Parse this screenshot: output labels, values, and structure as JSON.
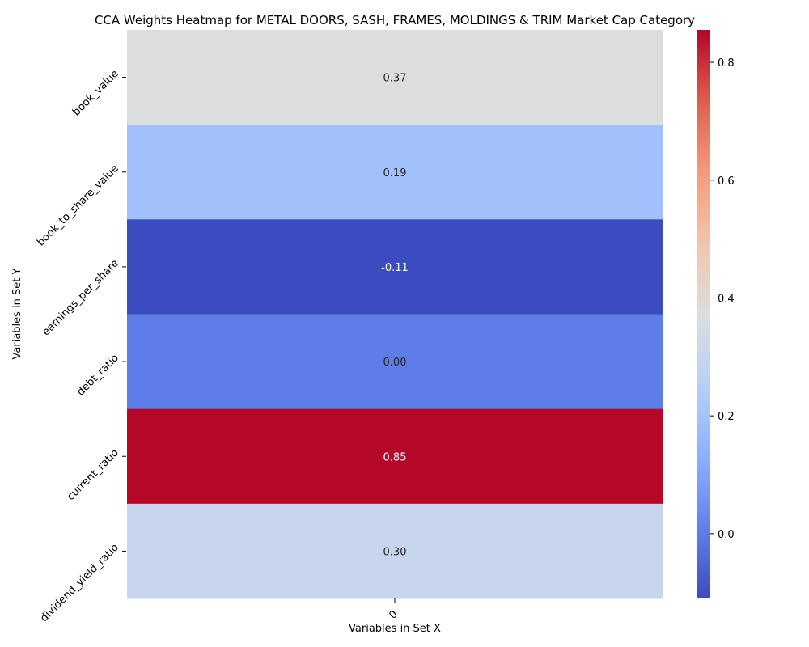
{
  "chart_data": {
    "type": "heatmap",
    "title": "CCA Weights Heatmap for METAL DOORS, SASH, FRAMES, MOLDINGS & TRIM Market Cap Category",
    "xlabel": "Variables in Set X",
    "ylabel": "Variables in Set Y",
    "x_categories": [
      "0"
    ],
    "y_categories": [
      "book_value",
      "book_to_share_value",
      "earnings_per_share",
      "debt_ratio",
      "current_ratio",
      "dividend_yield_ratio"
    ],
    "values": [
      [
        0.37
      ],
      [
        0.19
      ],
      [
        -0.11
      ],
      [
        0.0
      ],
      [
        0.85
      ],
      [
        0.3
      ]
    ],
    "annotations": [
      "0.37",
      "0.19",
      "-0.11",
      "0.00",
      "0.85",
      "0.30"
    ],
    "colormap": "coolwarm",
    "vmin": -0.11,
    "vmax": 0.855,
    "colorbar_ticks": [
      0.0,
      0.2,
      0.4,
      0.6,
      0.8
    ],
    "colorbar_tick_labels": [
      "0.0",
      "0.2",
      "0.4",
      "0.6",
      "0.8"
    ]
  }
}
